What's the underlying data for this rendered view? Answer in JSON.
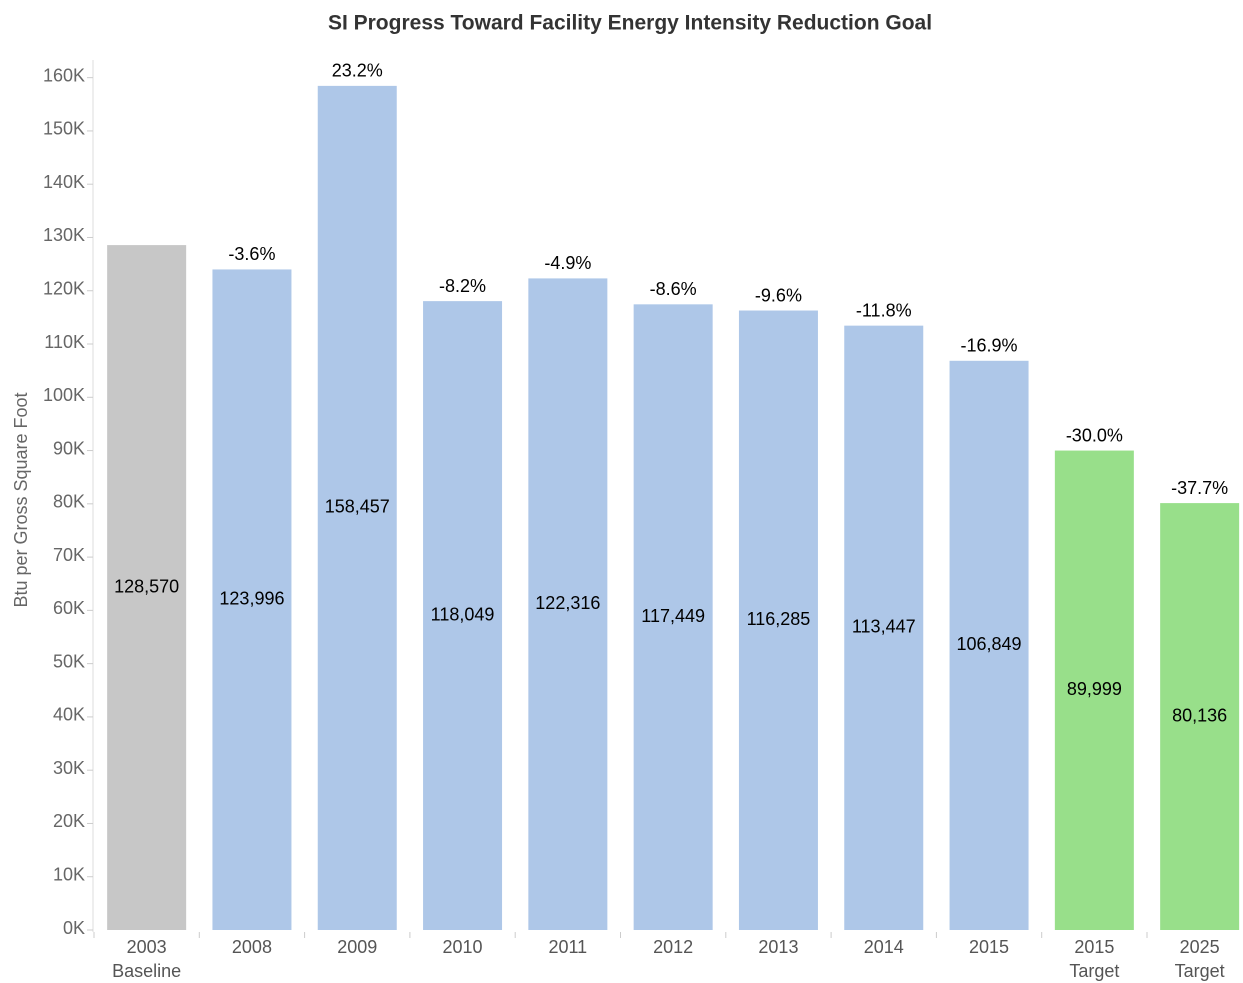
{
  "chart_data": {
    "type": "bar",
    "title": "SI Progress Toward Facility Energy Intensity Reduction Goal",
    "y_axis_label": "Btu per Gross Square Foot",
    "categories": [
      "2003 Baseline",
      "2008",
      "2009",
      "2010",
      "2011",
      "2012",
      "2013",
      "2014",
      "2015",
      "2015 Target",
      "2025 Target"
    ],
    "values": [
      128570,
      123996,
      158457,
      118049,
      122316,
      117449,
      116285,
      113447,
      106849,
      89999,
      80136
    ],
    "value_labels": [
      "128,570",
      "123,996",
      "158,457",
      "118,049",
      "122,316",
      "117,449",
      "116,285",
      "113,447",
      "106,849",
      "89,999",
      "80,136"
    ],
    "colors": [
      "#c7c7c7",
      "#aec7e8",
      "#aec7e8",
      "#aec7e8",
      "#aec7e8",
      "#aec7e8",
      "#aec7e8",
      "#aec7e8",
      "#aec7e8",
      "#98df8a",
      "#98df8a"
    ],
    "pct_change": {
      "values": [
        null,
        -3.6,
        23.2,
        -8.2,
        -4.9,
        -8.6,
        -9.6,
        -11.8,
        -16.9,
        -30.0,
        -37.7
      ],
      "value_labels": [
        null,
        "-3.6%",
        "23.2%",
        "-8.2%",
        "-4.9%",
        "-8.6%",
        "-9.6%",
        "-11.8%",
        "-16.9%",
        "-30.0%",
        "-37.7%"
      ]
    },
    "ylim": [
      0,
      162000
    ],
    "yticks": [
      {
        "value": 0,
        "label": "0K"
      },
      {
        "value": 10000,
        "label": "10K"
      },
      {
        "value": 20000,
        "label": "20K"
      },
      {
        "value": 30000,
        "label": "30K"
      },
      {
        "value": 40000,
        "label": "40K"
      },
      {
        "value": 50000,
        "label": "50K"
      },
      {
        "value": 60000,
        "label": "60K"
      },
      {
        "value": 70000,
        "label": "70K"
      },
      {
        "value": 80000,
        "label": "80K"
      },
      {
        "value": 90000,
        "label": "90K"
      },
      {
        "value": 100000,
        "label": "100K"
      },
      {
        "value": 110000,
        "label": "110K"
      },
      {
        "value": 120000,
        "label": "120K"
      },
      {
        "value": 130000,
        "label": "130K"
      },
      {
        "value": 140000,
        "label": "140K"
      },
      {
        "value": 150000,
        "label": "150K"
      },
      {
        "value": 160000,
        "label": "160K"
      }
    ],
    "grid": false
  }
}
